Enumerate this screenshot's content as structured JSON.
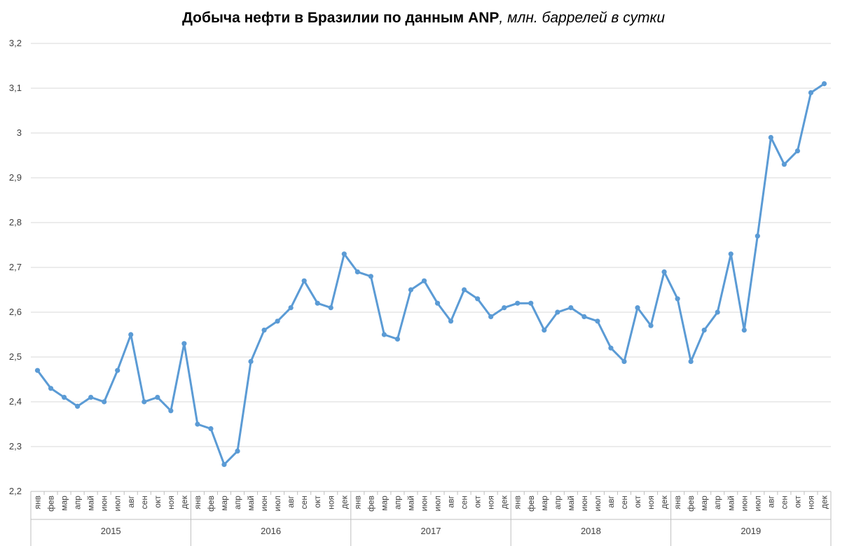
{
  "chart_data": {
    "type": "line",
    "title": "Добыча нефти в Бразилии по данным ANP",
    "subtitle": ", млн. баррелей в сутки",
    "ylim": [
      2.2,
      3.2
    ],
    "y_ticks": [
      "2,2",
      "2,3",
      "2,4",
      "2,5",
      "2,6",
      "2,7",
      "2,8",
      "2,9",
      "3",
      "3,1",
      "3,2"
    ],
    "y_tick_values": [
      2.2,
      2.3,
      2.4,
      2.5,
      2.6,
      2.7,
      2.8,
      2.9,
      3.0,
      3.1,
      3.2
    ],
    "grid": true,
    "legend": "none",
    "line_color": "#5b9bd5",
    "month_labels": [
      "янв",
      "фев",
      "мар",
      "апр",
      "май",
      "июн",
      "июл",
      "авг",
      "сен",
      "окт",
      "ноя",
      "дек"
    ],
    "years": [
      "2015",
      "2016",
      "2017",
      "2018",
      "2019"
    ],
    "series": [
      {
        "values": [
          2.47,
          2.43,
          2.41,
          2.39,
          2.41,
          2.4,
          2.47,
          2.55,
          2.4,
          2.41,
          2.38,
          2.53,
          2.35,
          2.34,
          2.26,
          2.29,
          2.49,
          2.56,
          2.58,
          2.61,
          2.67,
          2.62,
          2.61,
          2.73,
          2.69,
          2.68,
          2.55,
          2.54,
          2.65,
          2.67,
          2.62,
          2.58,
          2.65,
          2.63,
          2.59,
          2.61,
          2.62,
          2.62,
          2.56,
          2.6,
          2.61,
          2.59,
          2.58,
          2.52,
          2.49,
          2.61,
          2.57,
          2.69,
          2.63,
          2.49,
          2.56,
          2.6,
          2.73,
          2.56,
          2.77,
          2.99,
          2.93,
          2.96,
          3.09,
          3.11
        ]
      }
    ]
  }
}
